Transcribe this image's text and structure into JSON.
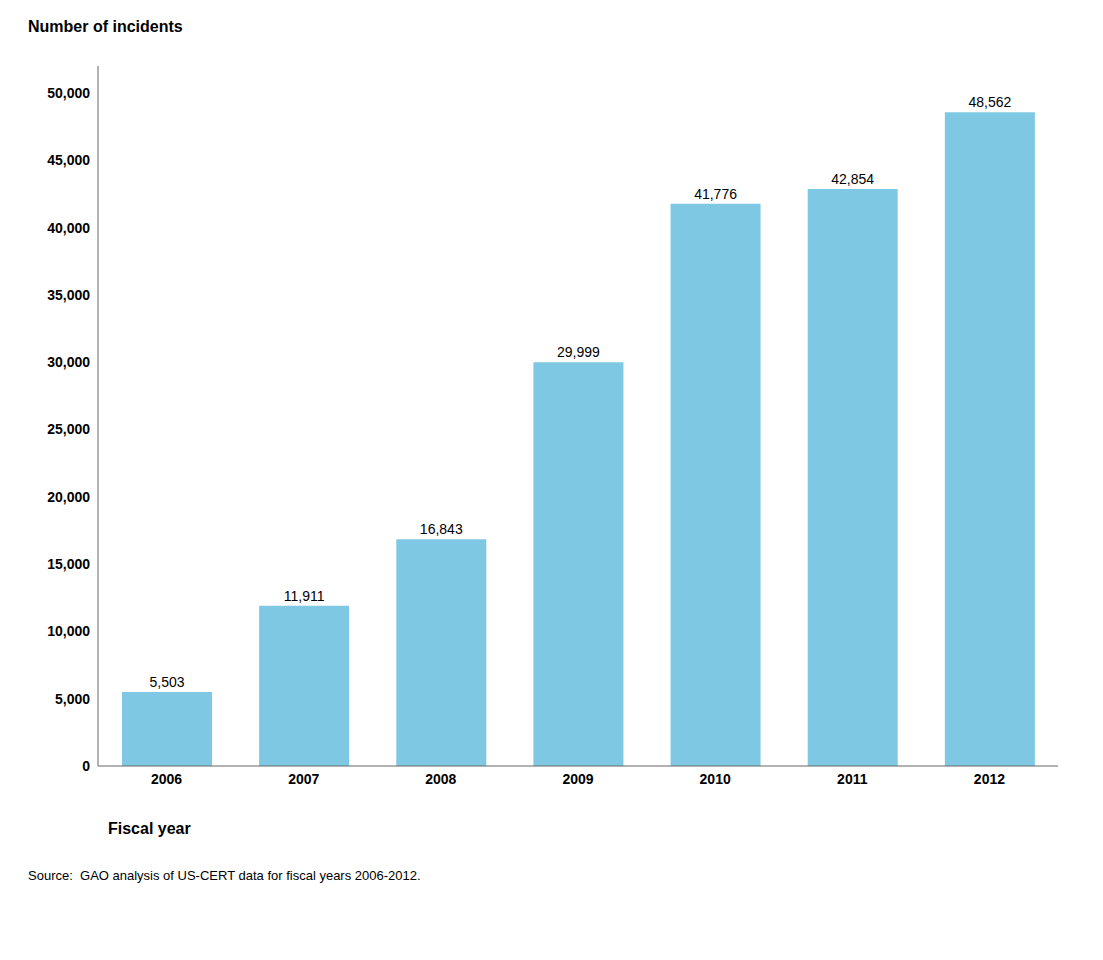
{
  "chart_data": {
    "type": "bar",
    "x_label": "Fiscal year",
    "y_label": "Number of incidents",
    "annotations": [
      "Source:  GAO analysis of US-CERT data for fiscal years 2006-2012."
    ],
    "categories": [
      "2006",
      "2007",
      "2008",
      "2009",
      "2010",
      "2011",
      "2012"
    ],
    "values": [
      5503,
      11911,
      16843,
      29999,
      41776,
      42854,
      48562
    ],
    "value_labels": [
      "5,503",
      "11,911",
      "16,843",
      "29,999",
      "41,776",
      "42,854",
      "48,562"
    ],
    "data_labels": true,
    "color": "#7EC8E3",
    "ylim": [
      0,
      52000
    ],
    "yticks": [
      0,
      {
        "value": 5000,
        "label": "5,000"
      },
      {
        "value": 10000,
        "label": "10,000"
      },
      {
        "value": 15000,
        "label": "15,000"
      },
      {
        "value": 20000,
        "label": "20,000"
      },
      {
        "value": 25000,
        "label": "25,000"
      },
      {
        "value": 30000,
        "label": "30,000"
      },
      {
        "value": 35000,
        "label": "35,000"
      },
      {
        "value": 40000,
        "label": "40,000"
      },
      {
        "value": 45000,
        "label": "45,000"
      },
      {
        "value": 50000,
        "label": "50,000"
      }
    ],
    "grid": false
  }
}
